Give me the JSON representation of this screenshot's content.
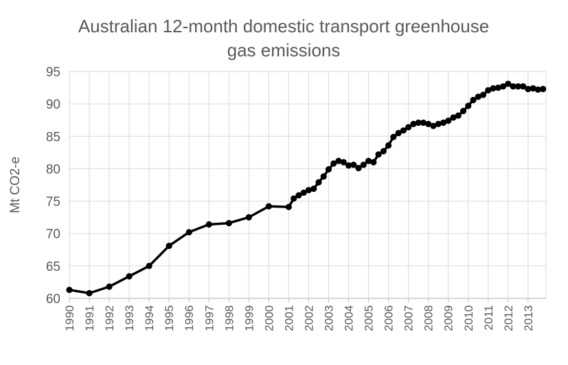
{
  "chart_data": {
    "type": "line",
    "title_lines": [
      "Australian 12-month domestic transport greenhouse",
      "gas emissions"
    ],
    "ylabel": "Mt CO2-e",
    "xlabel": "",
    "ylim": [
      60,
      95
    ],
    "yticks": [
      60,
      65,
      70,
      75,
      80,
      85,
      90,
      95
    ],
    "xlim": [
      1990,
      2013.9
    ],
    "xtick_labels": [
      "1990",
      "1991",
      "1992",
      "1993",
      "1994",
      "1995",
      "1996",
      "1997",
      "1998",
      "1999",
      "2000",
      "2001",
      "2002",
      "2003",
      "2004",
      "2005",
      "2006",
      "2007",
      "2008",
      "2009",
      "2010",
      "2011",
      "2012",
      "2013"
    ],
    "grid": true,
    "colors": {
      "line": "#000000",
      "grid": "#d9d9d9",
      "text": "#595959"
    },
    "series": [
      {
        "name": "Mt CO2-e",
        "x": [
          1990,
          1991,
          1992,
          1993,
          1994,
          1995,
          1996,
          1997,
          1998,
          1999,
          2000,
          2001,
          2001.25,
          2001.5,
          2001.75,
          2002.0,
          2002.25,
          2002.5,
          2002.75,
          2003.0,
          2003.25,
          2003.5,
          2003.75,
          2004.0,
          2004.25,
          2004.5,
          2004.75,
          2005.0,
          2005.25,
          2005.5,
          2005.75,
          2006.0,
          2006.25,
          2006.5,
          2006.75,
          2007.0,
          2007.25,
          2007.5,
          2007.75,
          2008.0,
          2008.25,
          2008.5,
          2008.75,
          2009.0,
          2009.25,
          2009.5,
          2009.75,
          2010.0,
          2010.25,
          2010.5,
          2010.75,
          2011.0,
          2011.25,
          2011.5,
          2011.75,
          2012.0,
          2012.25,
          2012.5,
          2012.75,
          2013.0,
          2013.25,
          2013.5,
          2013.75
        ],
        "y": [
          61.3,
          60.8,
          61.8,
          63.4,
          65.0,
          68.1,
          70.2,
          71.4,
          71.6,
          72.5,
          74.2,
          74.1,
          75.4,
          75.9,
          76.3,
          76.7,
          76.9,
          77.9,
          78.8,
          79.9,
          80.8,
          81.2,
          81.0,
          80.5,
          80.6,
          80.1,
          80.6,
          81.2,
          81.0,
          82.2,
          82.7,
          83.6,
          84.9,
          85.5,
          85.9,
          86.4,
          86.9,
          87.1,
          87.1,
          86.9,
          86.6,
          86.9,
          87.1,
          87.4,
          87.9,
          88.2,
          88.9,
          89.7,
          90.6,
          91.1,
          91.4,
          92.1,
          92.4,
          92.5,
          92.7,
          93.1,
          92.7,
          92.7,
          92.7,
          92.3,
          92.4,
          92.2,
          92.3
        ]
      }
    ]
  }
}
